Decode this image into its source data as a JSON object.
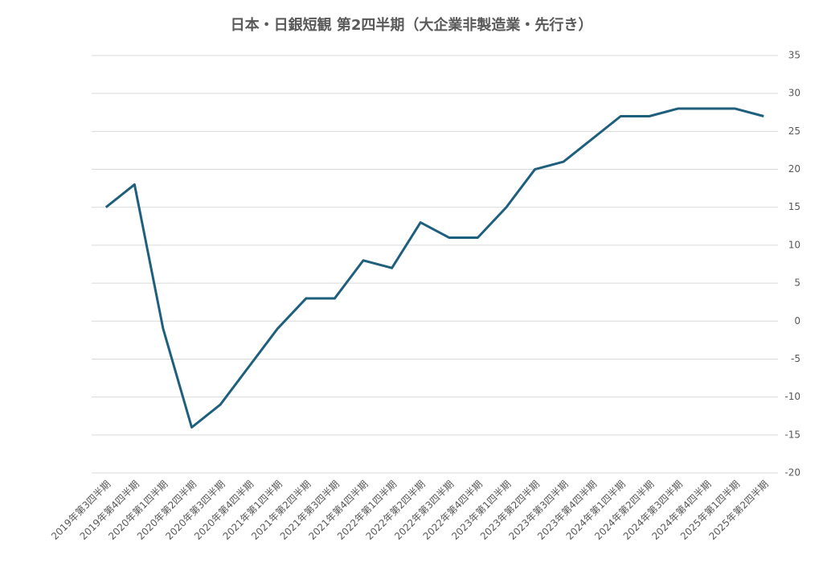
{
  "chart_data": {
    "type": "line",
    "title": "日本・日銀短観  第2四半期（大企業非製造業・先行き）",
    "categories": [
      "2019年第3四半期",
      "2019年第4四半期",
      "2020年第1四半期",
      "2020年第2四半期",
      "2020年第3四半期",
      "2020年第4四半期",
      "2021年第1四半期",
      "2021年第2四半期",
      "2021年第3四半期",
      "2021年第4四半期",
      "2022年第1四半期",
      "2022年第2四半期",
      "2022年第3四半期",
      "2022年第4四半期",
      "2023年第1四半期",
      "2023年第2四半期",
      "2023年第3四半期",
      "2023年第4四半期",
      "2024年第1四半期",
      "2024年第2四半期",
      "2024年第3四半期",
      "2024年第4四半期",
      "2025年第1四半期",
      "2025年第2四半期"
    ],
    "values": [
      15,
      18,
      -1,
      -14,
      -11,
      -6,
      -1,
      3,
      3,
      8,
      7,
      13,
      11,
      11,
      15,
      20,
      21,
      24,
      27,
      27,
      28,
      28,
      28,
      27
    ],
    "color": "#1f5f7e",
    "ylim": [
      -20,
      35
    ],
    "yticks": [
      -20,
      -15,
      -10,
      -5,
      0,
      5,
      10,
      15,
      20,
      25,
      30,
      35
    ],
    "y_axis_side": "right",
    "grid": true
  }
}
